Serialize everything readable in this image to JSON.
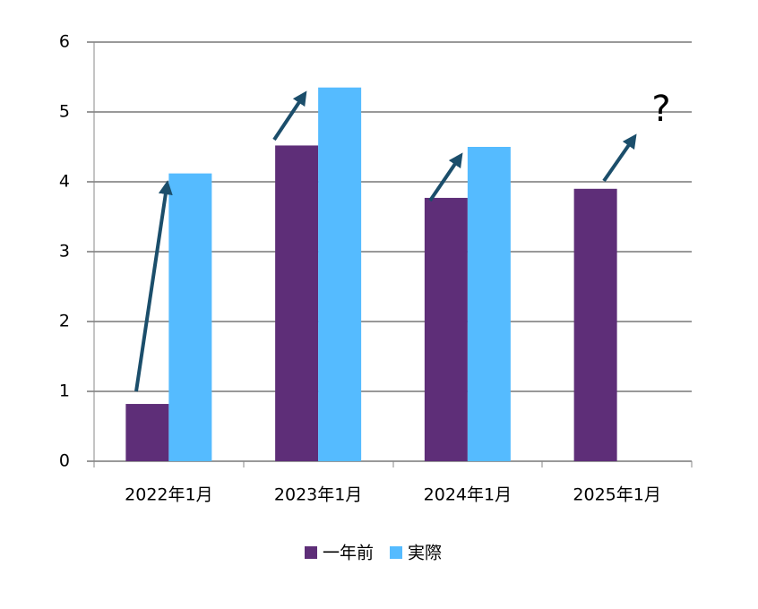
{
  "chart_data": {
    "type": "bar",
    "categories": [
      "2022年1月",
      "2023年1月",
      "2024年1月",
      "2025年1月"
    ],
    "series": [
      {
        "name": "一年前",
        "color": "#5e2e78",
        "values": [
          0.82,
          4.52,
          3.77,
          3.9
        ]
      },
      {
        "name": "実際",
        "color": "#55bbff",
        "values": [
          4.12,
          5.35,
          4.5,
          null
        ]
      }
    ],
    "ylim": [
      0,
      6
    ],
    "yticks": [
      0,
      1,
      2,
      3,
      4,
      5,
      6
    ],
    "grid": true,
    "annotation": "?"
  }
}
